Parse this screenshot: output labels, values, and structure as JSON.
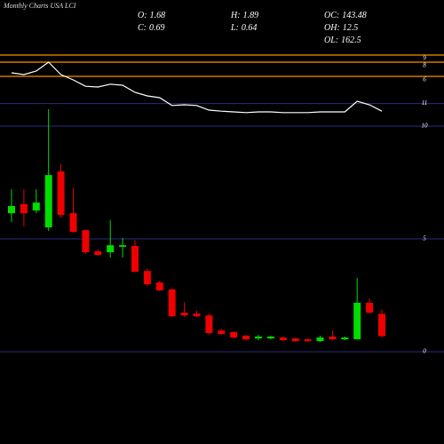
{
  "chart_data": {
    "type": "candlestick",
    "title": "Monthly Charts USA LCI",
    "stats": [
      {
        "label": "O:",
        "value": 1.68
      },
      {
        "label": "C:",
        "value": 0.69
      },
      {
        "label": "H:",
        "value": 1.89
      },
      {
        "label": "L:",
        "value": 0.64
      },
      {
        "label": "OC:",
        "value": 143.48
      },
      {
        "label": "OH:",
        "value": 12.5
      },
      {
        "label": "OL:",
        "value": 162.5
      }
    ],
    "categories": [
      null,
      null,
      null,
      null,
      null,
      null,
      null,
      null,
      null,
      null,
      null,
      null,
      null,
      null,
      null,
      null,
      null,
      null,
      null,
      null,
      null,
      null,
      null,
      null,
      null,
      null,
      null,
      null,
      null,
      null,
      null
    ],
    "open": [
      6.14,
      6.54,
      6.26,
      5.51,
      7.99,
      6.14,
      5.39,
      4.45,
      4.41,
      4.65,
      4.69,
      3.58,
      3.07,
      2.76,
      1.73,
      1.69,
      1.61,
      0.94,
      0.87,
      0.71,
      0.59,
      0.59,
      0.63,
      0.59,
      0.55,
      0.47,
      0.67,
      0.55,
      0.55,
      2.17,
      1.68
    ],
    "high": [
      7.2,
      7.2,
      7.2,
      10.75,
      8.31,
      7.24,
      5.39,
      4.53,
      5.83,
      5.04,
      4.96,
      3.7,
      3.15,
      2.8,
      2.2,
      1.81,
      1.69,
      1.02,
      0.91,
      0.75,
      0.75,
      0.71,
      0.67,
      0.63,
      0.59,
      0.71,
      0.94,
      0.67,
      3.27,
      2.36,
      1.89
    ],
    "low": [
      5.75,
      5.55,
      6.14,
      5.35,
      5.94,
      5.28,
      4.33,
      4.25,
      4.17,
      4.17,
      3.54,
      2.91,
      2.68,
      1.54,
      1.54,
      1.54,
      0.75,
      0.75,
      0.59,
      0.51,
      0.51,
      0.55,
      0.47,
      0.43,
      0.43,
      0.43,
      0.51,
      0.51,
      0.55,
      1.69,
      0.64
    ],
    "close": [
      6.46,
      6.14,
      6.61,
      7.83,
      6.06,
      5.31,
      4.41,
      4.29,
      4.72,
      4.72,
      3.54,
      2.99,
      2.72,
      1.57,
      1.61,
      1.57,
      0.83,
      0.79,
      0.63,
      0.55,
      0.67,
      0.67,
      0.51,
      0.47,
      0.47,
      0.63,
      0.55,
      0.63,
      2.17,
      1.73,
      0.69
    ],
    "up_color": "#00dd00",
    "down_color": "#ee0000",
    "line": {
      "axis": "y2",
      "color": "#ffffff",
      "values": [
        6.5,
        6.25,
        6.75,
        8,
        6.25,
        5.5,
        4.6,
        4.5,
        4.9,
        4.75,
        3.75,
        3.25,
        3,
        1.9,
        2,
        1.9,
        1.25,
        1.1,
        1,
        0.9,
        1,
        1,
        0.9,
        0.9,
        0.9,
        1,
        1,
        1,
        2.5,
        2,
        1.1
      ]
    },
    "ylim": [
      -4.09,
      15.59
    ],
    "yticks": [
      0,
      5,
      10,
      11
    ],
    "grid_color": "#2b2b80",
    "y2lim": [
      -45.75,
      16.75
    ],
    "y2ticks": [
      9,
      8,
      6
    ],
    "y2_grid_color": "#ff8c00"
  }
}
